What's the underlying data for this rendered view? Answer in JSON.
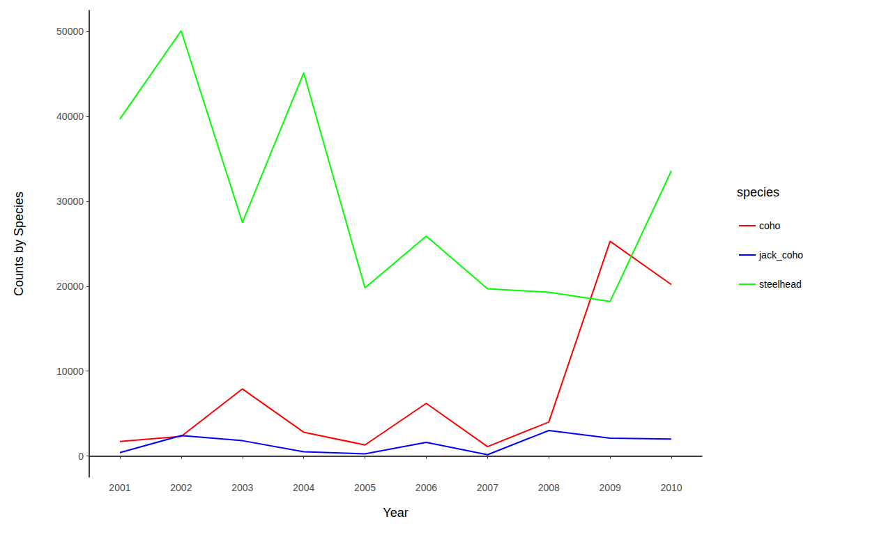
{
  "chart_data": {
    "type": "line",
    "x_label": "Year",
    "y_label": "Counts by Species",
    "legend_title": "species",
    "categories": [
      "2001",
      "2002",
      "2003",
      "2004",
      "2005",
      "2006",
      "2007",
      "2008",
      "2009",
      "2010"
    ],
    "series": [
      {
        "name": "coho",
        "color": "#ff0000",
        "values": [
          1700,
          2300,
          7900,
          2800,
          1300,
          6200,
          1100,
          4000,
          25300,
          20200
        ]
      },
      {
        "name": "jack_coho",
        "color": "#0000ff",
        "values": [
          400,
          2400,
          1800,
          500,
          250,
          1600,
          150,
          3000,
          2100,
          2000
        ]
      },
      {
        "name": "steelhead",
        "color": "#00ff00",
        "values": [
          39700,
          50100,
          27500,
          45150,
          19800,
          25900,
          19700,
          19300,
          18200,
          33600
        ]
      }
    ],
    "ylim": [
      -2500,
      52500
    ],
    "yticks": [
      0,
      10000,
      20000,
      30000,
      40000,
      50000
    ],
    "grid": false,
    "legend": "right"
  }
}
